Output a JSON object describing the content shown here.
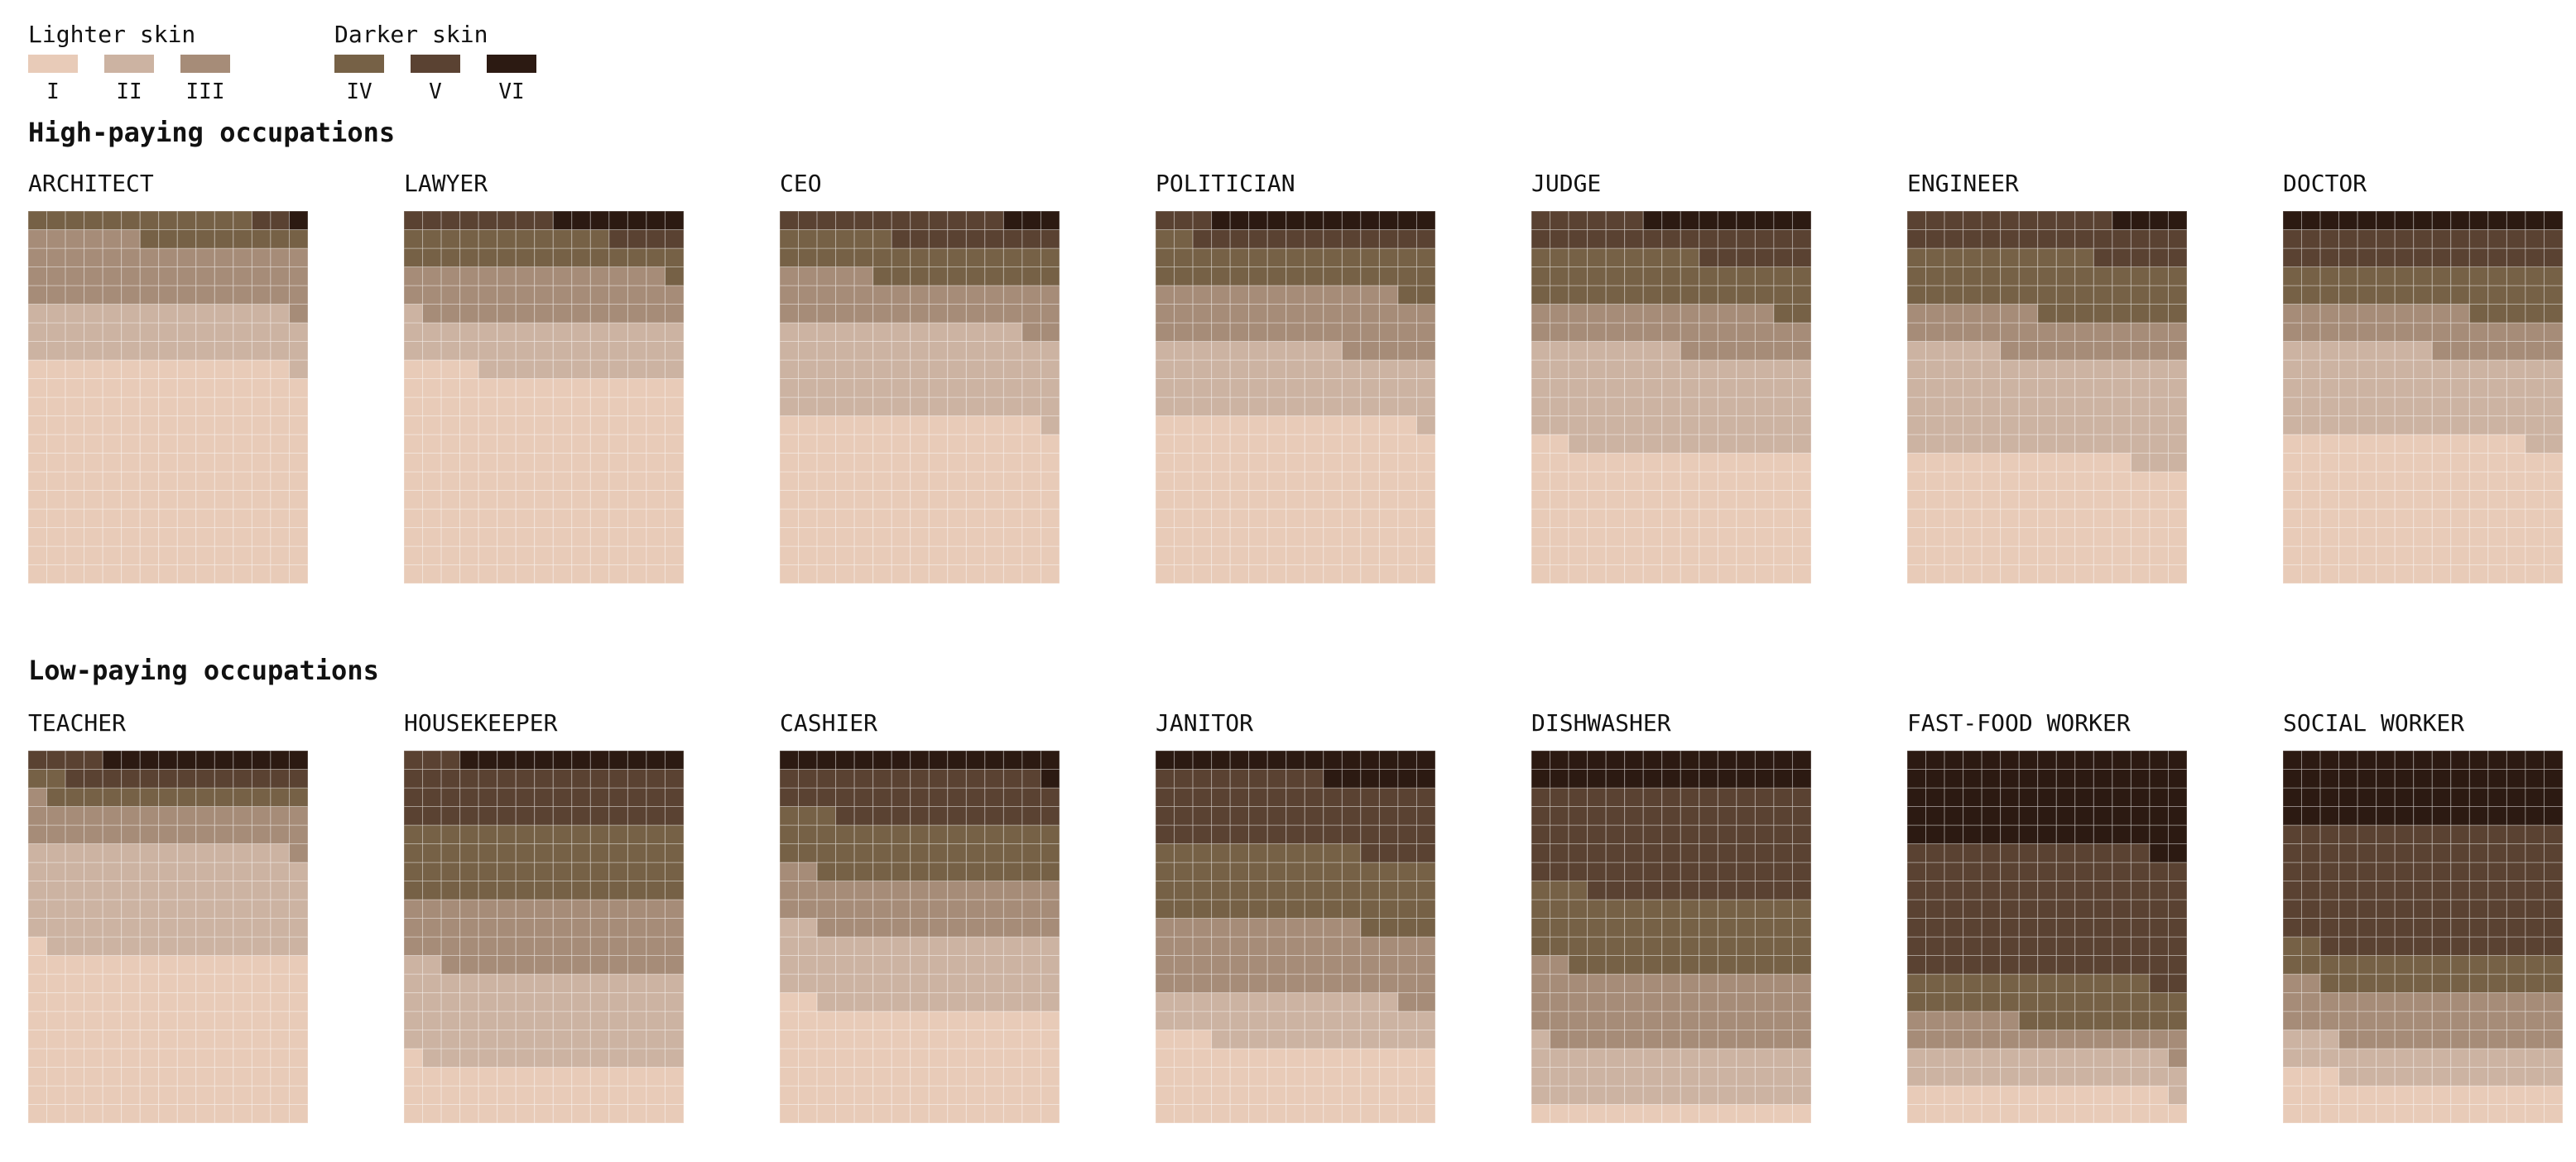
{
  "legend": {
    "lighter_title": "Lighter skin",
    "darker_title": "Darker skin",
    "items": [
      {
        "label": "I",
        "color": "#e8cbb8"
      },
      {
        "label": "II",
        "color": "#ccb3a2"
      },
      {
        "label": "III",
        "color": "#a68c78"
      },
      {
        "label": "IV",
        "color": "#766146"
      },
      {
        "label": "V",
        "color": "#5a4232"
      },
      {
        "label": "VI",
        "color": "#2c1a12"
      }
    ]
  },
  "sections": {
    "high": "High-paying occupations",
    "low": "Low-paying occupations"
  },
  "chart_data": {
    "type": "waffle",
    "units_per_chart": 300,
    "categories": [
      "I",
      "II",
      "III",
      "IV",
      "V",
      "VI"
    ],
    "charts": [
      {
        "group": "high",
        "title": "ARCHITECT",
        "values": [
          179,
          45,
          52,
          21,
          2,
          1
        ]
      },
      {
        "group": "high",
        "title": "LAWYER",
        "values": [
          169,
          42,
          43,
          27,
          12,
          7
        ]
      },
      {
        "group": "high",
        "title": "CEO",
        "values": [
          134,
          74,
          37,
          31,
          21,
          3
        ]
      },
      {
        "group": "high",
        "title": "POLITICIAN",
        "values": [
          134,
          56,
          48,
          34,
          16,
          12
        ]
      },
      {
        "group": "high",
        "title": "JUDGE",
        "values": [
          107,
          81,
          35,
          41,
          27,
          9
        ]
      },
      {
        "group": "high",
        "title": "ENGINEER",
        "values": [
          102,
          83,
          32,
          48,
          31,
          4
        ]
      },
      {
        "group": "high",
        "title": "DOCTOR",
        "values": [
          118,
          70,
          32,
          35,
          30,
          15
        ]
      },
      {
        "group": "low",
        "title": "TEACHER",
        "values": [
          136,
          88,
          32,
          16,
          17,
          11
        ]
      },
      {
        "group": "low",
        "title": "HOUSEKEEPER",
        "values": [
          46,
          76,
          58,
          60,
          48,
          12
        ]
      },
      {
        "group": "low",
        "title": "CASHIER",
        "values": [
          92,
          60,
          45,
          46,
          41,
          16
        ]
      },
      {
        "group": "low",
        "title": "JANITOR",
        "values": [
          63,
          40,
          58,
          60,
          58,
          21
        ]
      },
      {
        "group": "low",
        "title": "DISHWASHER",
        "values": [
          15,
          46,
          61,
          61,
          87,
          30
        ]
      },
      {
        "group": "low",
        "title": "FAST-FOOD WORKER",
        "values": [
          29,
          30,
          22,
          37,
          105,
          77
        ]
      },
      {
        "group": "low",
        "title": "SOCIAL WORKER",
        "values": [
          33,
          30,
          44,
          30,
          103,
          60
        ]
      }
    ]
  }
}
